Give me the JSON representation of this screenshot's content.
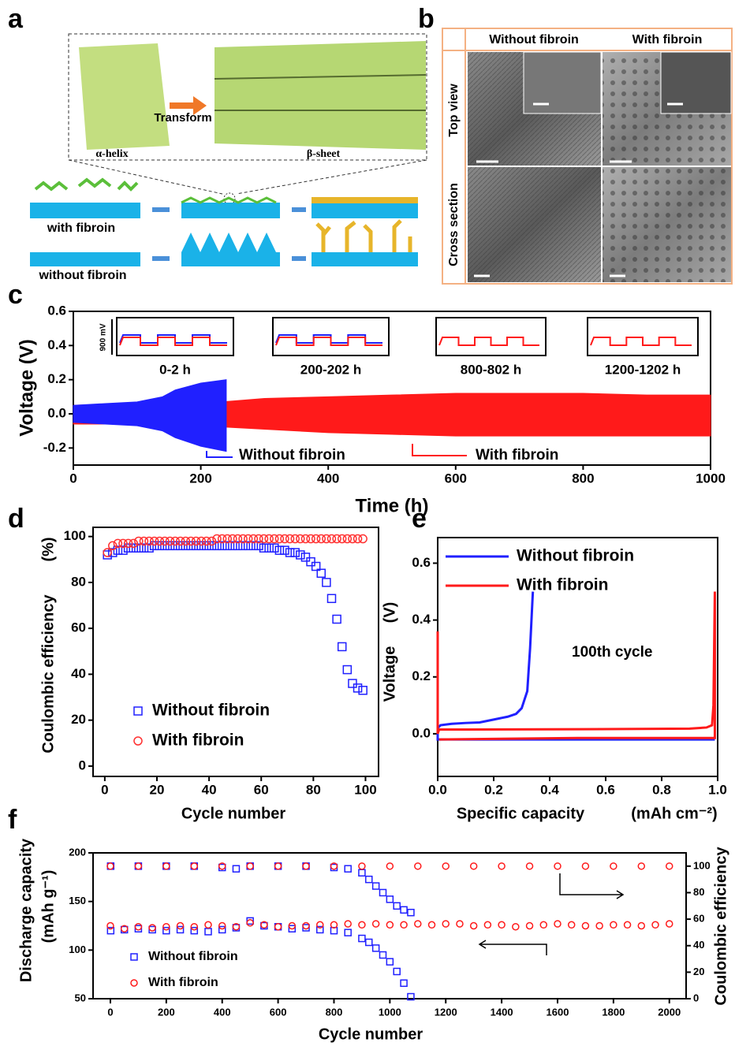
{
  "panel_labels": [
    "a",
    "b",
    "c",
    "d",
    "e",
    "f"
  ],
  "diagram_a": {
    "transform": "Transform",
    "alpha": "α-helix",
    "beta": "β-sheet",
    "with": "with fibroin",
    "without": "without fibroin"
  },
  "sem_b": {
    "columns": [
      "Without fibroin",
      "With fibroin"
    ],
    "rows": [
      "Top view",
      "Cross section"
    ]
  },
  "chart_data": [
    {
      "type": "band",
      "xlabel": "Time (h)",
      "ylabel": "Voltage (V)",
      "xlim": [
        0,
        1000
      ],
      "xticks": [
        0,
        200,
        400,
        600,
        800,
        1000
      ],
      "ylim": [
        -0.3,
        0.6
      ],
      "yticks": [
        -0.2,
        {
          "value": 0,
          "label": "0.0"
        },
        0.2,
        0.4,
        0.6
      ],
      "series": [
        {
          "name": "With fibroin",
          "color": "#ff1a1a",
          "x": [
            0,
            100,
            200,
            300,
            400,
            500,
            600,
            700,
            800,
            900,
            1000
          ],
          "values": [
            0.05,
            0.06,
            0.06,
            0.09,
            0.1,
            0.11,
            0.12,
            0.12,
            0.12,
            0.11,
            0.11
          ],
          "lower": [
            -0.06,
            -0.06,
            -0.07,
            -0.09,
            -0.11,
            -0.12,
            -0.13,
            -0.13,
            -0.13,
            -0.13,
            -0.13
          ]
        },
        {
          "name": "Without fibroin",
          "color": "#2020ff",
          "x": [
            0,
            50,
            100,
            140,
            160,
            200,
            240
          ],
          "values": [
            0.05,
            0.06,
            0.07,
            0.1,
            0.14,
            0.18,
            0.2
          ],
          "lower": [
            -0.05,
            -0.06,
            -0.07,
            -0.1,
            -0.14,
            -0.19,
            -0.22
          ]
        }
      ],
      "insets": [
        "0-2 h",
        "200-202 h",
        "800-802 h",
        "1200-1202 h"
      ],
      "scale_label": "900 mV"
    },
    {
      "type": "scatter",
      "xlabel": "Cycle number",
      "ylabel": "Coulombic efficiency",
      "ylabel_unit": "(%)",
      "xlim": [
        -4.5,
        105
      ],
      "xticks": [
        0,
        20,
        40,
        60,
        80,
        100
      ],
      "ylim": [
        -4.5,
        104
      ],
      "yticks": [
        0,
        20,
        40,
        60,
        80,
        100
      ],
      "legend": "lower left",
      "series": [
        {
          "name": "Without fibroin",
          "color": "#2020ff",
          "marker": "square",
          "x": [
            1,
            3,
            5,
            7,
            9,
            11,
            13,
            15,
            17,
            19,
            21,
            23,
            25,
            27,
            29,
            31,
            33,
            35,
            37,
            39,
            41,
            43,
            45,
            47,
            49,
            51,
            53,
            55,
            57,
            59,
            61,
            63,
            65,
            67,
            69,
            71,
            73,
            75,
            77,
            79,
            81,
            83,
            85,
            87,
            89,
            91,
            93,
            95,
            97,
            99
          ],
          "values": [
            92,
            93,
            94,
            94,
            95,
            95,
            95,
            95,
            95,
            96,
            96,
            96,
            96,
            96,
            96,
            96,
            96,
            96,
            96,
            96,
            96,
            96,
            96,
            96,
            96,
            96,
            96,
            96,
            96,
            96,
            95,
            95,
            95,
            94,
            94,
            93,
            93,
            92,
            91,
            89,
            87,
            84,
            80,
            73,
            64,
            52,
            42,
            36,
            34,
            33
          ]
        },
        {
          "name": "With fibroin",
          "color": "#ff3030",
          "marker": "circle",
          "x": [
            1,
            3,
            5,
            7,
            9,
            11,
            13,
            15,
            17,
            19,
            21,
            23,
            25,
            27,
            29,
            31,
            33,
            35,
            37,
            39,
            41,
            43,
            45,
            47,
            49,
            51,
            53,
            55,
            57,
            59,
            61,
            63,
            65,
            67,
            69,
            71,
            73,
            75,
            77,
            79,
            81,
            83,
            85,
            87,
            89,
            91,
            93,
            95,
            97,
            99
          ],
          "values": [
            93,
            96,
            97,
            97,
            97,
            97,
            98,
            98,
            98,
            98,
            98,
            98,
            98,
            98,
            98,
            98,
            98,
            98,
            98,
            98,
            98,
            99,
            99,
            99,
            99,
            99,
            99,
            99,
            99,
            99,
            99,
            99,
            99,
            99,
            99,
            99,
            99,
            99,
            99,
            99,
            99,
            99,
            99,
            99,
            99,
            99,
            99,
            99,
            99,
            99
          ]
        }
      ]
    },
    {
      "type": "line",
      "xlabel": "Specific capacity",
      "xlabel_unit": "(mAh cm⁻²)",
      "ylabel": "Voltage",
      "ylabel_unit": "(V)",
      "xlim": [
        0,
        1.0
      ],
      "xticks": [
        {
          "value": 0,
          "label": "0.0"
        },
        0.2,
        0.4,
        0.6,
        0.8,
        {
          "value": 1,
          "label": "1.0"
        }
      ],
      "ylim": [
        -0.15,
        0.69
      ],
      "yticks": [
        {
          "value": 0,
          "label": "0.0"
        },
        0.2,
        0.4,
        0.6
      ],
      "annotation": "100th cycle",
      "series": [
        {
          "name": "Without fibroin",
          "color": "#2020ff",
          "x": [
            0.99,
            0.5,
            0,
            0,
            0.01,
            0.05,
            0.1,
            0.15,
            0.2,
            0.25,
            0.28,
            0.3,
            0.32,
            0.33,
            0.335,
            0.34
          ],
          "values": [
            -0.02,
            -0.02,
            -0.02,
            0.02,
            0.03,
            0.035,
            0.038,
            0.04,
            0.05,
            0.06,
            0.07,
            0.09,
            0.15,
            0.3,
            0.4,
            0.5
          ]
        },
        {
          "name": "With fibroin",
          "color": "#ff1a1a",
          "x": [
            0,
            0,
            0.005,
            0.1,
            0.5,
            0.9,
            0.96,
            0.98,
            0.985,
            0.99,
            0.99,
            0.5,
            0.005
          ],
          "values": [
            0.36,
            0,
            0.015,
            0.015,
            0.016,
            0.018,
            0.022,
            0.03,
            0.1,
            0.5,
            -0.015,
            -0.015,
            -0.02
          ]
        }
      ]
    },
    {
      "type": "scatter",
      "xlabel": "Cycle number",
      "ylabel": "Discharge capacity",
      "ylabel_unit": "(mAh g⁻¹)",
      "y2label": "Coulombic efficiency",
      "xlim": [
        -62,
        2060
      ],
      "xticks": [
        0,
        200,
        400,
        600,
        800,
        1000,
        1200,
        1400,
        1600,
        1800,
        2000
      ],
      "ylim": [
        50,
        200
      ],
      "yticks": [
        50,
        100,
        150,
        200
      ],
      "y2lim": [
        0,
        110
      ],
      "y2ticks": [
        0,
        20,
        40,
        60,
        80,
        100
      ],
      "legend": "lower left",
      "series": [
        {
          "name": "Without fibroin",
          "color": "#2020ff",
          "marker": "square",
          "x": [
            1,
            50,
            100,
            150,
            200,
            250,
            300,
            350,
            400,
            450,
            500,
            550,
            600,
            650,
            700,
            750,
            800,
            850,
            900,
            925,
            950,
            975,
            1000,
            1025,
            1050,
            1075
          ],
          "values": [
            120,
            121,
            122,
            121,
            120,
            121,
            120,
            119,
            121,
            123,
            130,
            125,
            124,
            122,
            123,
            121,
            120,
            118,
            112,
            108,
            102,
            95,
            88,
            78,
            66,
            52
          ]
        },
        {
          "name": "With fibroin",
          "color": "#ff1a1a",
          "marker": "circle",
          "x": [
            0,
            50,
            100,
            150,
            200,
            250,
            300,
            350,
            400,
            450,
            500,
            550,
            600,
            650,
            700,
            750,
            800,
            850,
            900,
            950,
            1000,
            1050,
            1100,
            1150,
            1200,
            1250,
            1300,
            1350,
            1400,
            1450,
            1500,
            1550,
            1600,
            1650,
            1700,
            1750,
            1800,
            1850,
            1900,
            1950,
            2000
          ],
          "values": [
            125,
            122,
            124,
            123,
            124,
            125,
            124,
            126,
            125,
            124,
            128,
            126,
            124,
            125,
            125,
            126,
            126,
            127,
            126,
            127,
            126,
            126,
            127,
            126,
            127,
            127,
            125,
            126,
            126,
            124,
            125,
            126,
            127,
            126,
            125,
            125,
            126,
            126,
            125,
            126,
            127
          ]
        },
        {
          "color": "#2020ff",
          "marker": "square",
          "axis": "y2",
          "x": [
            1,
            100,
            200,
            300,
            400,
            450,
            500,
            600,
            700,
            800,
            850,
            900,
            925,
            950,
            975,
            1000,
            1025,
            1050,
            1075
          ],
          "values": [
            100,
            100,
            100,
            100,
            99,
            98,
            100,
            100,
            100,
            99,
            98,
            95,
            90,
            85,
            80,
            75,
            70,
            67,
            65
          ]
        },
        {
          "color": "#ff1a1a",
          "marker": "circle",
          "axis": "y2",
          "x": [
            0,
            100,
            200,
            300,
            400,
            500,
            600,
            700,
            800,
            900,
            1000,
            1100,
            1200,
            1300,
            1400,
            1500,
            1600,
            1700,
            1800,
            1900,
            2000
          ],
          "values": [
            100,
            100,
            100,
            100,
            100,
            100,
            100,
            100,
            100,
            100,
            100,
            100,
            100,
            100,
            100,
            100,
            100,
            100,
            100,
            100,
            100
          ]
        }
      ]
    }
  ]
}
